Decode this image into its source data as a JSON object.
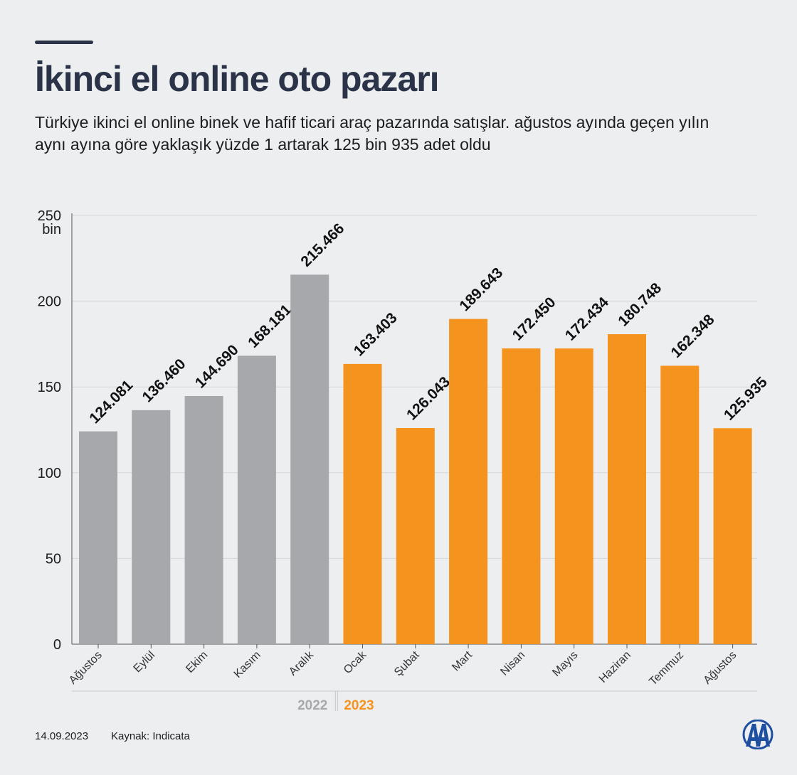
{
  "header": {
    "title": "İkinci el online oto pazarı",
    "subtitle": "Türkiye ikinci el online binek ve hafif ticari araç pazarında satışlar. ağustos ayında geçen yılın aynı ayına göre yaklaşık yüzde 1 artarak 125 bin 935 adet oldu"
  },
  "chart_data": {
    "type": "bar",
    "categories": [
      "Ağustos",
      "Eylül",
      "Ekim",
      "Kasım",
      "Aralık",
      "Ocak",
      "Şubat",
      "Mart",
      "Nisan",
      "Mayıs",
      "Haziran",
      "Temmuz",
      "Ağustos"
    ],
    "values": [
      124081,
      136460,
      144690,
      168181,
      215466,
      163403,
      126043,
      189643,
      172450,
      172434,
      180748,
      162348,
      125935
    ],
    "value_labels": [
      "124.081",
      "136.460",
      "144.690",
      "168.181",
      "215.466",
      "163.403",
      "126.043",
      "189.643",
      "172.450",
      "172.434",
      "180.748",
      "162.348",
      "125.935"
    ],
    "year_groups": [
      {
        "label": "2022",
        "count": 5,
        "color": "#a7a8ab"
      },
      {
        "label": "2023",
        "count": 8,
        "color": "#f5931f"
      }
    ],
    "yaxis": {
      "ticks": [
        0,
        50000,
        100000,
        150000,
        200000,
        250000
      ],
      "tick_labels": [
        "0",
        "50",
        "100",
        "150",
        "200",
        "250"
      ],
      "unit_label": "bin",
      "ylim": [
        0,
        250000
      ]
    },
    "grid": true
  },
  "footer": {
    "date": "14.09.2023",
    "source": "Kaynak: Indicata"
  },
  "colors": {
    "title": "#2b3348",
    "grid": "#d4d5d8",
    "axis": "#555555"
  }
}
